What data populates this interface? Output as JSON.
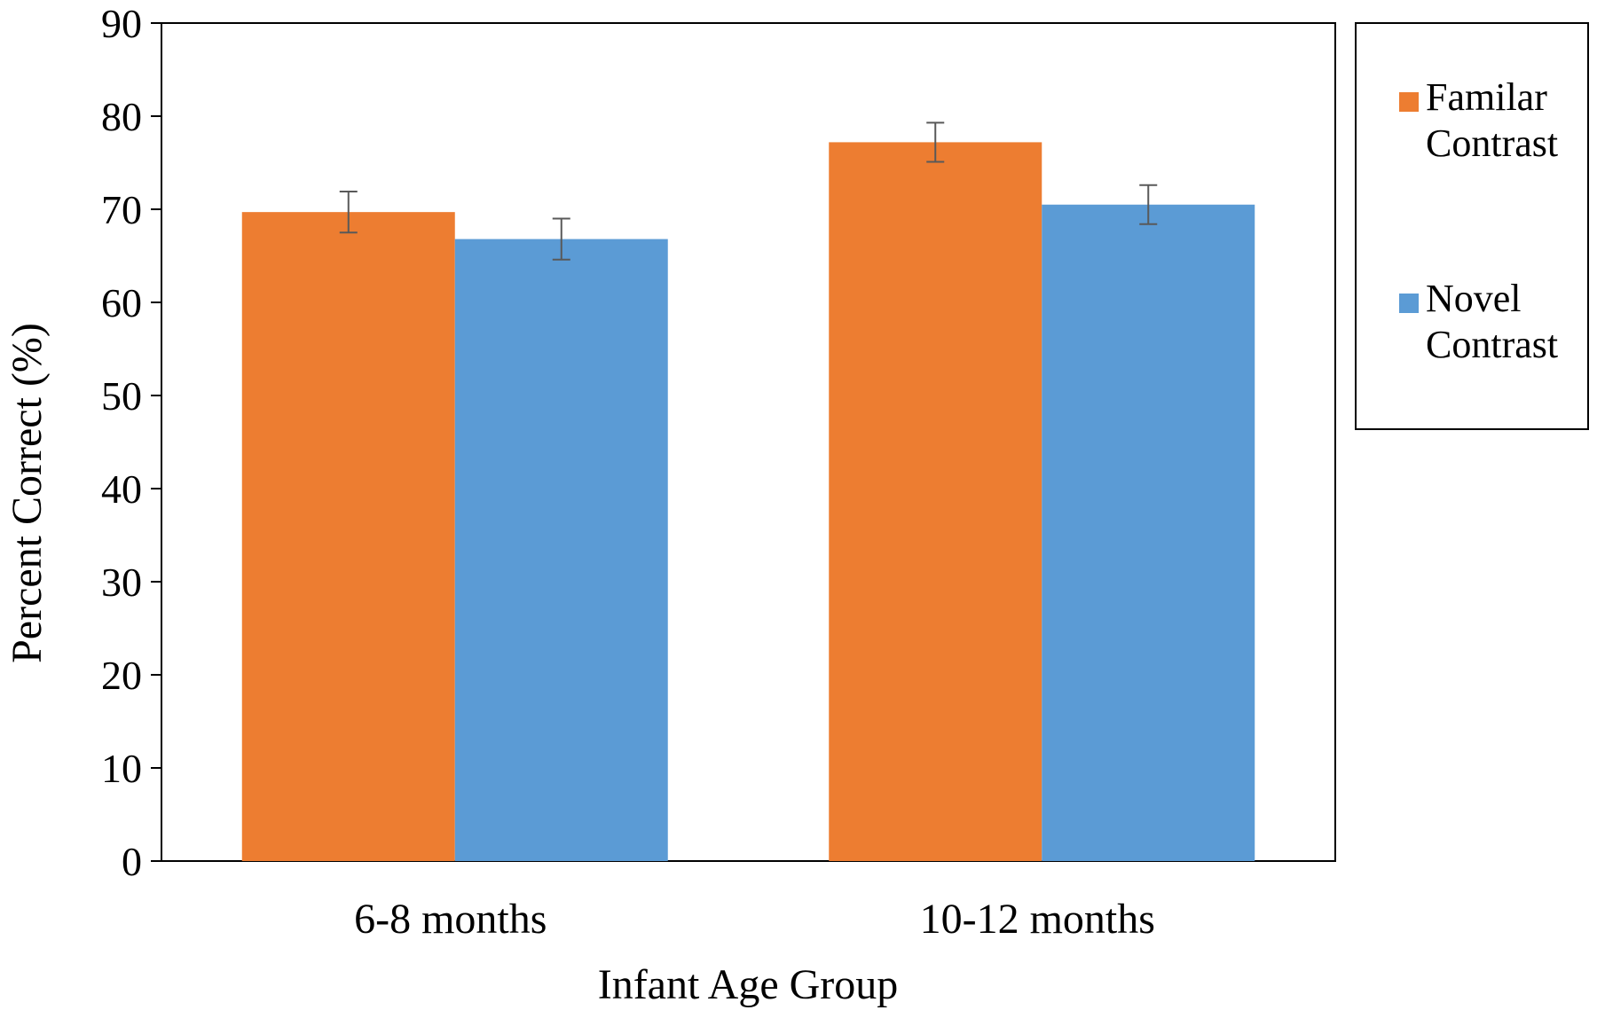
{
  "chart_data": {
    "type": "bar",
    "title": "",
    "xlabel": "Infant Age Group",
    "ylabel": "Percent Correct (%)",
    "ylim": [
      0,
      90
    ],
    "yticks": [
      0,
      10,
      20,
      30,
      40,
      50,
      60,
      70,
      80,
      90
    ],
    "grid": false,
    "legend_position": "right",
    "categories": [
      "6-8 months",
      "10-12 months"
    ],
    "series": [
      {
        "name": "Familar Contrast",
        "legend_lines": [
          "Familar",
          "Contrast"
        ],
        "color": "#ED7D31",
        "values": [
          69.7,
          77.2
        ],
        "errors": [
          2.2,
          2.1
        ]
      },
      {
        "name": "Novel Contrast",
        "legend_lines": [
          "Novel",
          "Contrast"
        ],
        "color": "#5B9BD5",
        "values": [
          66.8,
          70.5
        ],
        "errors": [
          2.2,
          2.1
        ]
      }
    ]
  }
}
